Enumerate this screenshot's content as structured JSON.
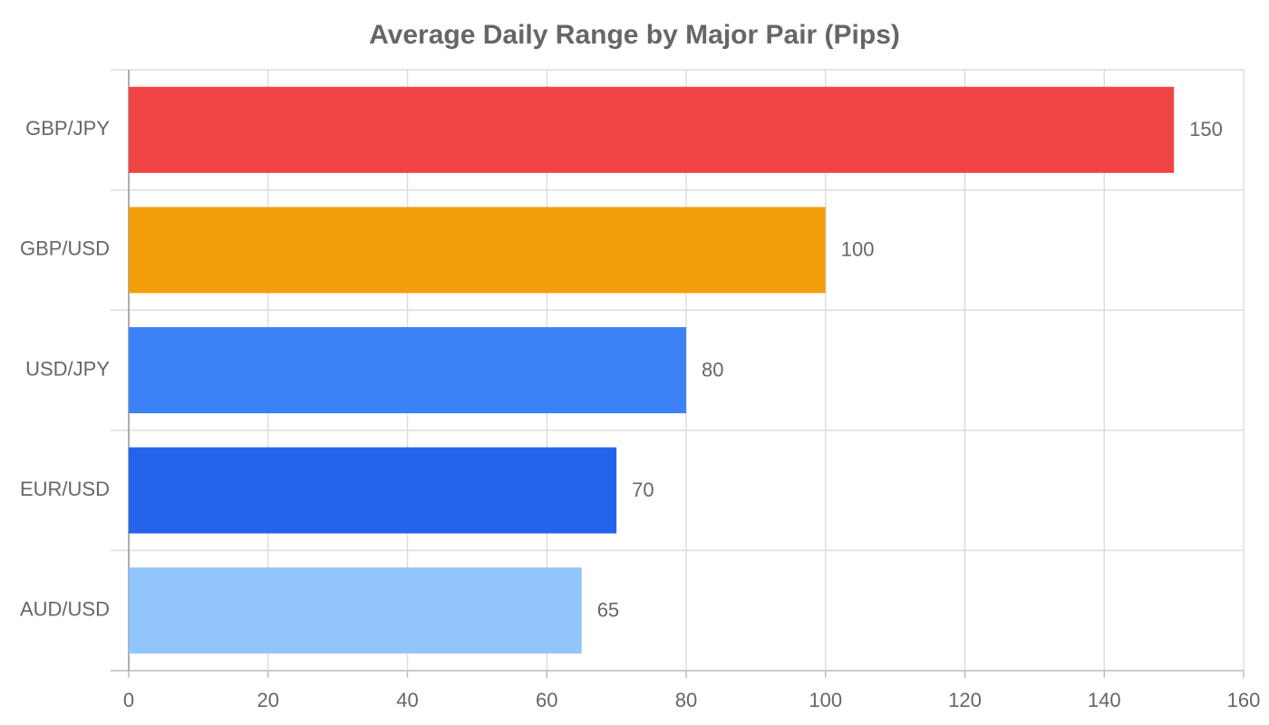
{
  "chart_data": {
    "type": "hbar",
    "title": "Average Daily Range by Major Pair (Pips)",
    "categories": [
      "GBP/JPY",
      "GBP/USD",
      "USD/JPY",
      "EUR/USD",
      "AUD/USD"
    ],
    "values": [
      150,
      100,
      80,
      70,
      65
    ],
    "colors": [
      "#ef4444",
      "#f39f0b",
      "#3b82f6",
      "#2563eb",
      "#93c5fd"
    ],
    "xlim": [
      0,
      160
    ],
    "xticks": [
      0,
      20,
      40,
      60,
      80,
      100,
      120,
      140,
      160
    ],
    "grid": true
  }
}
